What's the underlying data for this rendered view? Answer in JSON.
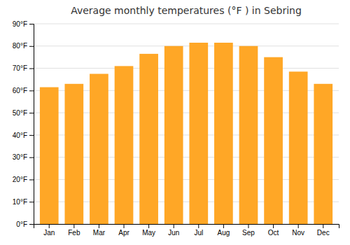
{
  "chart_data": {
    "type": "bar",
    "title": "Average monthly temperatures (°F ) in Sebring",
    "categories": [
      "Jan",
      "Feb",
      "Mar",
      "Apr",
      "May",
      "Jun",
      "Jul",
      "Aug",
      "Sep",
      "Oct",
      "Nov",
      "Dec"
    ],
    "values": [
      61.5,
      63.0,
      67.5,
      71.0,
      76.5,
      80.0,
      81.5,
      81.5,
      80.0,
      75.0,
      68.5,
      63.0
    ],
    "color": "#FFA726",
    "ylim": [
      0,
      90
    ],
    "yticks": [
      {
        "value": 0,
        "label": "0°F"
      },
      {
        "value": 10,
        "label": "10°F"
      },
      {
        "value": 20,
        "label": "20°F"
      },
      {
        "value": 30,
        "label": "30°F"
      },
      {
        "value": 40,
        "label": "40°F"
      },
      {
        "value": 50,
        "label": "50°F"
      },
      {
        "value": 60,
        "label": "60°F"
      },
      {
        "value": 70,
        "label": "70°F"
      },
      {
        "value": 80,
        "label": "80°F"
      },
      {
        "value": 90,
        "label": "90°F"
      }
    ],
    "grid": true
  }
}
